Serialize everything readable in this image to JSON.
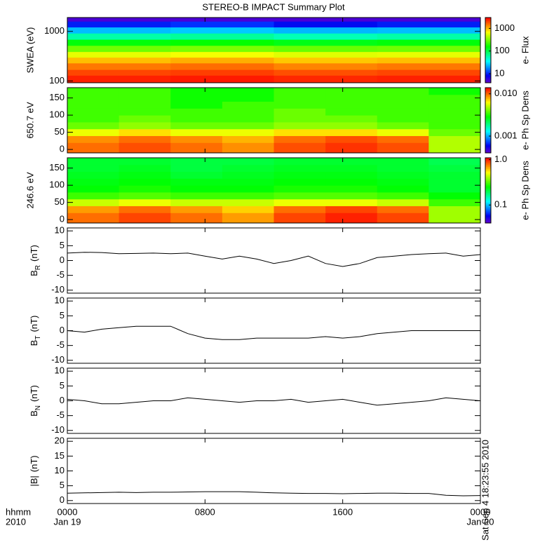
{
  "title": "STEREO-B IMPACT Summary Plot",
  "xaxis": {
    "xlim": [
      0,
      24
    ],
    "xticks": [
      {
        "value": 0,
        "label": "0000"
      },
      {
        "value": 8,
        "label": "0800"
      },
      {
        "value": 16,
        "label": "1600"
      },
      {
        "value": 24,
        "label": "0000"
      }
    ],
    "date_labels": [
      {
        "value": 0,
        "label": "Jan 19"
      },
      {
        "value": 24,
        "label": "Jan 20"
      }
    ],
    "row_labels": [
      "hhmm",
      "2010"
    ]
  },
  "timestamp": "Sat Sep  4 18:23:55 2010",
  "chart_data": [
    {
      "type": "heatmap",
      "ylabel": "SWEA (eV)",
      "log": true,
      "ylim": [
        92,
        1900
      ],
      "yticks": [
        100,
        1000
      ],
      "x": [
        0,
        6,
        12,
        18,
        24
      ],
      "y": [
        92,
        130,
        170,
        230,
        300,
        390,
        520,
        690,
        920,
        1220,
        1600,
        1900
      ],
      "values": [
        [
          2500,
          2600,
          2400,
          2500
        ],
        [
          2000,
          2100,
          1900,
          2000
        ],
        [
          1500,
          1600,
          1400,
          1500
        ],
        [
          1000,
          1100,
          950,
          1000
        ],
        [
          600,
          650,
          580,
          600
        ],
        [
          300,
          320,
          290,
          300
        ],
        [
          150,
          160,
          140,
          150
        ],
        [
          60,
          65,
          55,
          60
        ],
        [
          25,
          27,
          24,
          25
        ],
        [
          10,
          11,
          9,
          10
        ],
        [
          5,
          5,
          5,
          5
        ]
      ],
      "colorbar": {
        "label": "e- Flux",
        "log": true,
        "clim": [
          4,
          3000
        ],
        "ticks": [
          10,
          100,
          1000
        ]
      }
    },
    {
      "type": "heatmap",
      "ylabel": "650.7 eV",
      "log": false,
      "ylim": [
        -10,
        180
      ],
      "yticks": [
        0,
        50,
        100,
        150
      ],
      "x": [
        0,
        3,
        6,
        9,
        12,
        15,
        18,
        21,
        24
      ],
      "y": [
        -10,
        20,
        40,
        60,
        80,
        100,
        120,
        140,
        160,
        180
      ],
      "values": [
        [
          0.01,
          0.011,
          0.01,
          0.009,
          0.011,
          0.012,
          0.011,
          0.005
        ],
        [
          0.009,
          0.01,
          0.009,
          0.008,
          0.01,
          0.011,
          0.01,
          0.005
        ],
        [
          0.006,
          0.007,
          0.006,
          0.006,
          0.007,
          0.007,
          0.006,
          0.004
        ],
        [
          0.004,
          0.0045,
          0.004,
          0.004,
          0.0045,
          0.0045,
          0.004,
          0.0035
        ],
        [
          0.0035,
          0.004,
          0.0035,
          0.0035,
          0.004,
          0.004,
          0.0035,
          0.0035
        ],
        [
          0.0035,
          0.0035,
          0.0035,
          0.0035,
          0.004,
          0.0035,
          0.0035,
          0.0035
        ],
        [
          0.0035,
          0.0035,
          0.003,
          0.0035,
          0.0035,
          0.0035,
          0.0035,
          0.0035
        ],
        [
          0.0035,
          0.0035,
          0.003,
          0.003,
          0.0035,
          0.0035,
          0.0035,
          0.0035
        ],
        [
          0.0035,
          0.0035,
          0.003,
          0.003,
          0.0035,
          0.0035,
          0.0035,
          0.003
        ]
      ],
      "colorbar": {
        "label": "e- Ph Sp Dens",
        "log": true,
        "clim": [
          0.0004,
          0.014
        ],
        "ticks": [
          {
            "value": 0.001,
            "label": "0.001"
          },
          {
            "value": 0.01,
            "label": "0.010"
          }
        ]
      }
    },
    {
      "type": "heatmap",
      "ylabel": "246.6 eV",
      "log": false,
      "ylim": [
        -10,
        180
      ],
      "yticks": [
        0,
        50,
        100,
        150
      ],
      "x": [
        0,
        3,
        6,
        9,
        12,
        15,
        18,
        21,
        24
      ],
      "y": [
        -10,
        20,
        40,
        60,
        80,
        100,
        120,
        140,
        160,
        180
      ],
      "values": [
        [
          0.8,
          0.9,
          0.8,
          0.7,
          0.9,
          1.0,
          0.9,
          0.4
        ],
        [
          0.7,
          0.8,
          0.7,
          0.6,
          0.8,
          0.9,
          0.8,
          0.4
        ],
        [
          0.45,
          0.5,
          0.45,
          0.45,
          0.5,
          0.5,
          0.45,
          0.3
        ],
        [
          0.3,
          0.32,
          0.3,
          0.3,
          0.32,
          0.32,
          0.3,
          0.25
        ],
        [
          0.25,
          0.27,
          0.25,
          0.25,
          0.27,
          0.27,
          0.25,
          0.22
        ],
        [
          0.24,
          0.25,
          0.24,
          0.24,
          0.25,
          0.25,
          0.24,
          0.22
        ],
        [
          0.23,
          0.24,
          0.22,
          0.23,
          0.24,
          0.24,
          0.23,
          0.22
        ],
        [
          0.22,
          0.23,
          0.21,
          0.22,
          0.23,
          0.23,
          0.22,
          0.21
        ],
        [
          0.22,
          0.22,
          0.21,
          0.21,
          0.22,
          0.22,
          0.22,
          0.2
        ]
      ],
      "colorbar": {
        "label": "e- Ph Sp Dens",
        "log": true,
        "clim": [
          0.04,
          1.1
        ],
        "ticks": [
          0.1,
          {
            "value": 1,
            "label": "1.0"
          }
        ]
      }
    },
    {
      "type": "line",
      "ylabel": {
        "main": "B",
        "sub": "R",
        "unit": "(nT)"
      },
      "color": "#000000",
      "ylim": [
        -11,
        11
      ],
      "yticks": [
        -10,
        -5,
        0,
        5,
        10
      ],
      "x": [
        0,
        1,
        2,
        3,
        4,
        5,
        6,
        7,
        8,
        9,
        10,
        11,
        12,
        13,
        14,
        15,
        16,
        17,
        18,
        19,
        20,
        21,
        22,
        23,
        24
      ],
      "values": [
        2.5,
        2.8,
        2.7,
        2.3,
        2.4,
        2.5,
        2.3,
        2.5,
        1.5,
        0.5,
        1.5,
        0.5,
        -1,
        0,
        1.5,
        -1,
        -2,
        -1,
        1,
        1.5,
        2,
        2.3,
        2.5,
        1.5,
        2
      ]
    },
    {
      "type": "line",
      "ylabel": {
        "main": "B",
        "sub": "T",
        "unit": "(nT)"
      },
      "color": "#000000",
      "ylim": [
        -11,
        11
      ],
      "yticks": [
        -10,
        -5,
        0,
        5,
        10
      ],
      "x": [
        0,
        1,
        2,
        3,
        4,
        5,
        6,
        7,
        8,
        9,
        10,
        11,
        12,
        13,
        14,
        15,
        16,
        17,
        18,
        19,
        20,
        21,
        22,
        23,
        24
      ],
      "values": [
        0,
        -0.5,
        0.5,
        1,
        1.5,
        1.5,
        1.5,
        -1,
        -2.5,
        -3,
        -3,
        -2.5,
        -2.5,
        -2.5,
        -2.5,
        -2,
        -2.5,
        -2,
        -1,
        -0.5,
        0,
        0,
        0,
        0,
        0
      ]
    },
    {
      "type": "line",
      "ylabel": {
        "main": "B",
        "sub": "N",
        "unit": "(nT)"
      },
      "color": "#000000",
      "ylim": [
        -11,
        11
      ],
      "yticks": [
        -10,
        -5,
        0,
        5,
        10
      ],
      "x": [
        0,
        1,
        2,
        3,
        4,
        5,
        6,
        7,
        8,
        9,
        10,
        11,
        12,
        13,
        14,
        15,
        16,
        17,
        18,
        19,
        20,
        21,
        22,
        23,
        24
      ],
      "values": [
        0.5,
        0,
        -1,
        -1,
        -0.5,
        0,
        0,
        1,
        0.5,
        0,
        -0.5,
        0,
        0,
        0.5,
        -0.5,
        0,
        0.5,
        -0.5,
        -1.5,
        -1,
        -0.5,
        0,
        1,
        0.5,
        0
      ]
    },
    {
      "type": "line",
      "ylabel": {
        "main": "|B|",
        "unit": "(nT)"
      },
      "color": "#000000",
      "ylim": [
        -1,
        21
      ],
      "yticks": [
        0,
        5,
        10,
        15,
        20
      ],
      "x": [
        0,
        1,
        2,
        3,
        4,
        5,
        6,
        7,
        8,
        9,
        10,
        11,
        12,
        13,
        14,
        15,
        16,
        17,
        18,
        19,
        20,
        21,
        22,
        23,
        24
      ],
      "values": [
        2.5,
        2.6,
        2.7,
        2.8,
        2.7,
        2.8,
        2.8,
        2.9,
        3.0,
        3.0,
        3.0,
        2.8,
        2.6,
        2.5,
        2.4,
        2.4,
        2.3,
        2.4,
        2.5,
        2.5,
        2.4,
        2.4,
        1.8,
        1.6,
        1.7
      ]
    }
  ]
}
